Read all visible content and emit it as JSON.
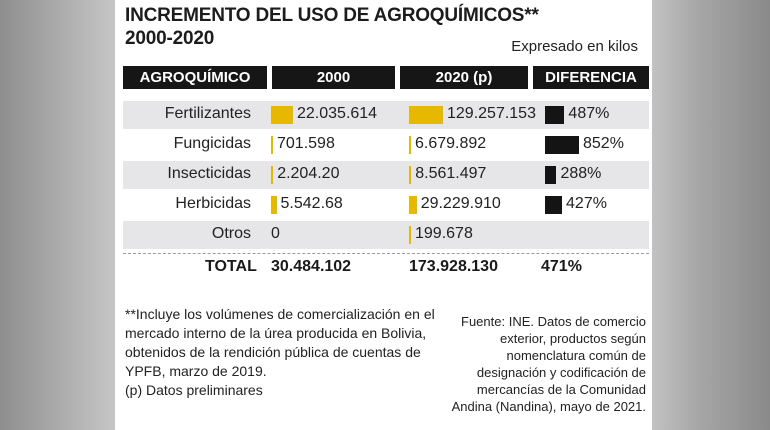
{
  "title_line1": "INCREMENTO DEL USO DE AGROQUÍMICOS**",
  "title_line2": "2000-2020",
  "subtitle": "Expresado en kilos",
  "headers": {
    "name": "AGROQUÍMICO",
    "y2000": "2000",
    "y2020": "2020 (p)",
    "diff": "DIFERENCIA"
  },
  "rows": [
    {
      "name": "Fertilizantes",
      "v2000": "22.035.614",
      "v2020": "129.257.153",
      "diff": "487%"
    },
    {
      "name": "Fungicidas",
      "v2000": "701.598",
      "v2020": "6.679.892",
      "diff": "852%"
    },
    {
      "name": "Insecticidas",
      "v2000": "2.204.20",
      "v2020": "8.561.497",
      "diff": "288%"
    },
    {
      "name": "Herbicidas",
      "v2000": "5.542.68",
      "v2020": "29.229.910",
      "diff": "427%"
    },
    {
      "name": "Otros",
      "v2000": "0",
      "v2020": "199.678",
      "diff": ""
    }
  ],
  "total": {
    "label": "TOTAL",
    "v2000": "30.484.102",
    "v2020": "173.928.130",
    "diff": "471%"
  },
  "footnote": [
    "**Incluye los volúmenes de comercialización en el mercado interno de la úrea producida en Bolivia, obtenidos de la rendición pública de cuentas de YPFB, marzo de 2019.",
    "(p) Datos preliminares"
  ],
  "source": "Fuente: INE. Datos de comercio exterior, productos según nomenclatura común de designación y codificación de mercancías de la Comunidad Andina (Nandina), mayo de 2021.",
  "colors": {
    "bar2000": "#e6b800",
    "bar2020": "#e6b800",
    "barDiff": "#141414",
    "header": "#161616",
    "shade": "#e6e6e9"
  },
  "chart_data": {
    "type": "table",
    "categories": [
      "Fertilizantes",
      "Fungicidas",
      "Insecticidas",
      "Herbicidas",
      "Otros"
    ],
    "series": [
      {
        "name": "2000",
        "values": [
          22035614,
          701598,
          2204200,
          5542680,
          0
        ]
      },
      {
        "name": "2020 (p)",
        "values": [
          129257153,
          6679892,
          8561497,
          29229910,
          199678
        ]
      },
      {
        "name": "DIFERENCIA",
        "values": [
          487,
          852,
          288,
          427,
          null
        ]
      }
    ],
    "totals": {
      "2000": 30484102,
      "2020 (p)": 173928130,
      "DIFERENCIA": 471
    }
  }
}
